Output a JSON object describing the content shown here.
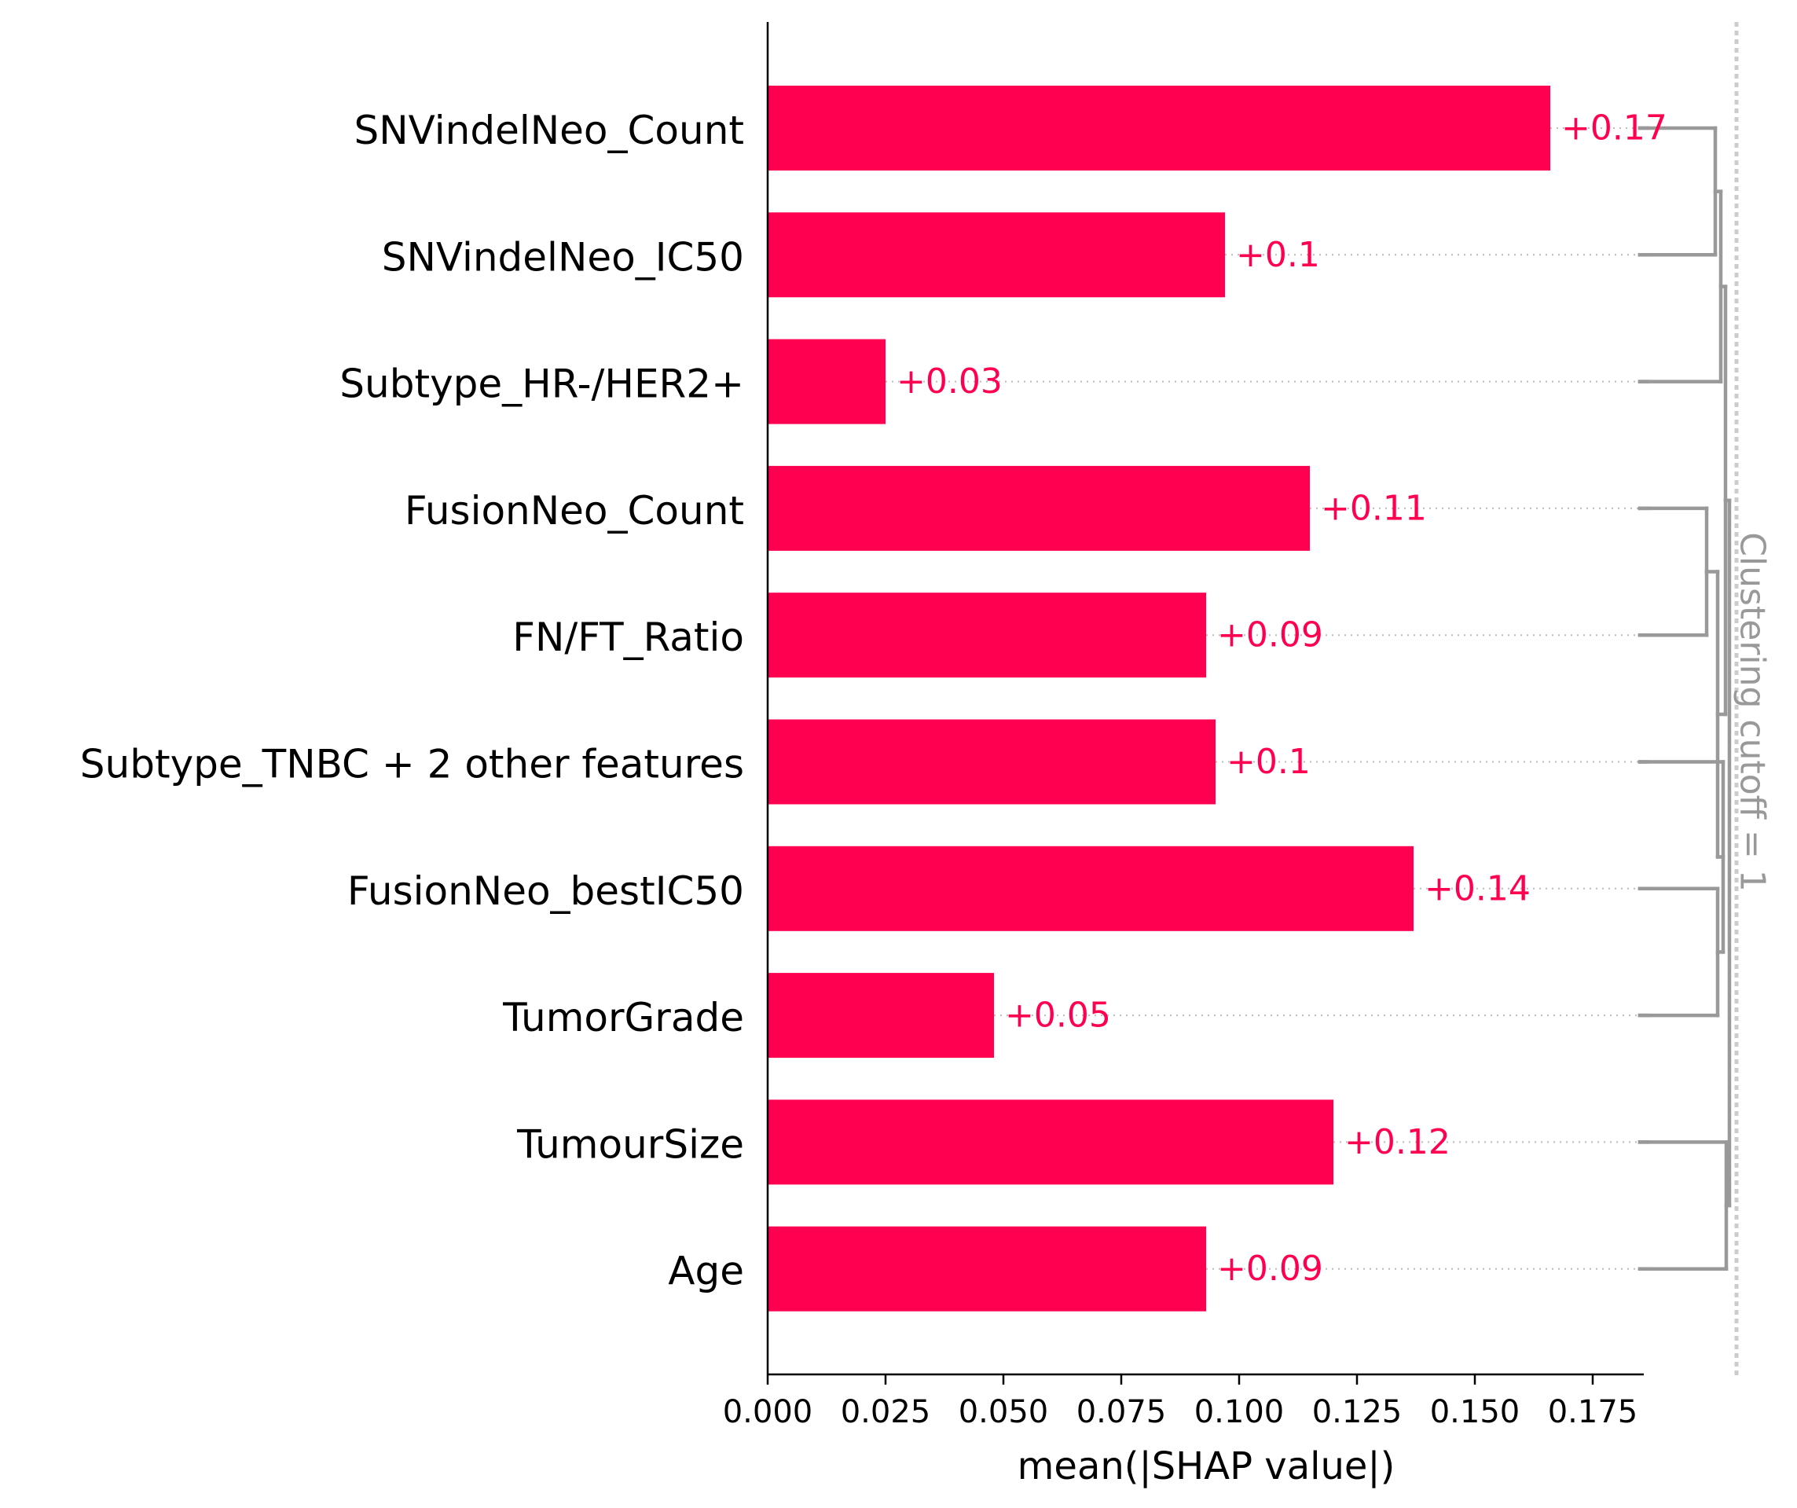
{
  "colors": {
    "bar": "#ff0051",
    "value_text": "#ff0051",
    "axis": "#000000",
    "dendrogram": "#999999",
    "cutoff": "#cccccc",
    "guide": "#bbbbbb"
  },
  "chart_data": {
    "type": "bar",
    "orientation": "horizontal",
    "categories": [
      "SNVindelNeo_Count",
      "SNVindelNeo_IC50",
      "Subtype_HR-/HER2+",
      "FusionNeo_Count",
      "FN/FT_Ratio",
      "Subtype_TNBC + 2 other features",
      "FusionNeo_bestIC50",
      "TumorGrade",
      "TumourSize",
      "Age"
    ],
    "values": [
      0.166,
      0.097,
      0.025,
      0.115,
      0.093,
      0.095,
      0.137,
      0.048,
      0.12,
      0.093
    ],
    "value_labels": [
      "+0.17",
      "+0.1",
      "+0.03",
      "+0.11",
      "+0.09",
      "+0.1",
      "+0.14",
      "+0.05",
      "+0.12",
      "+0.09"
    ],
    "xlabel": "mean(|SHAP value|)",
    "xlim": [
      0,
      0.185
    ],
    "xticks": [
      "0.000",
      "0.025",
      "0.050",
      "0.075",
      "0.100",
      "0.125",
      "0.150",
      "0.175"
    ],
    "clustering_label": "Clustering cutoff = 1",
    "grid": false
  }
}
